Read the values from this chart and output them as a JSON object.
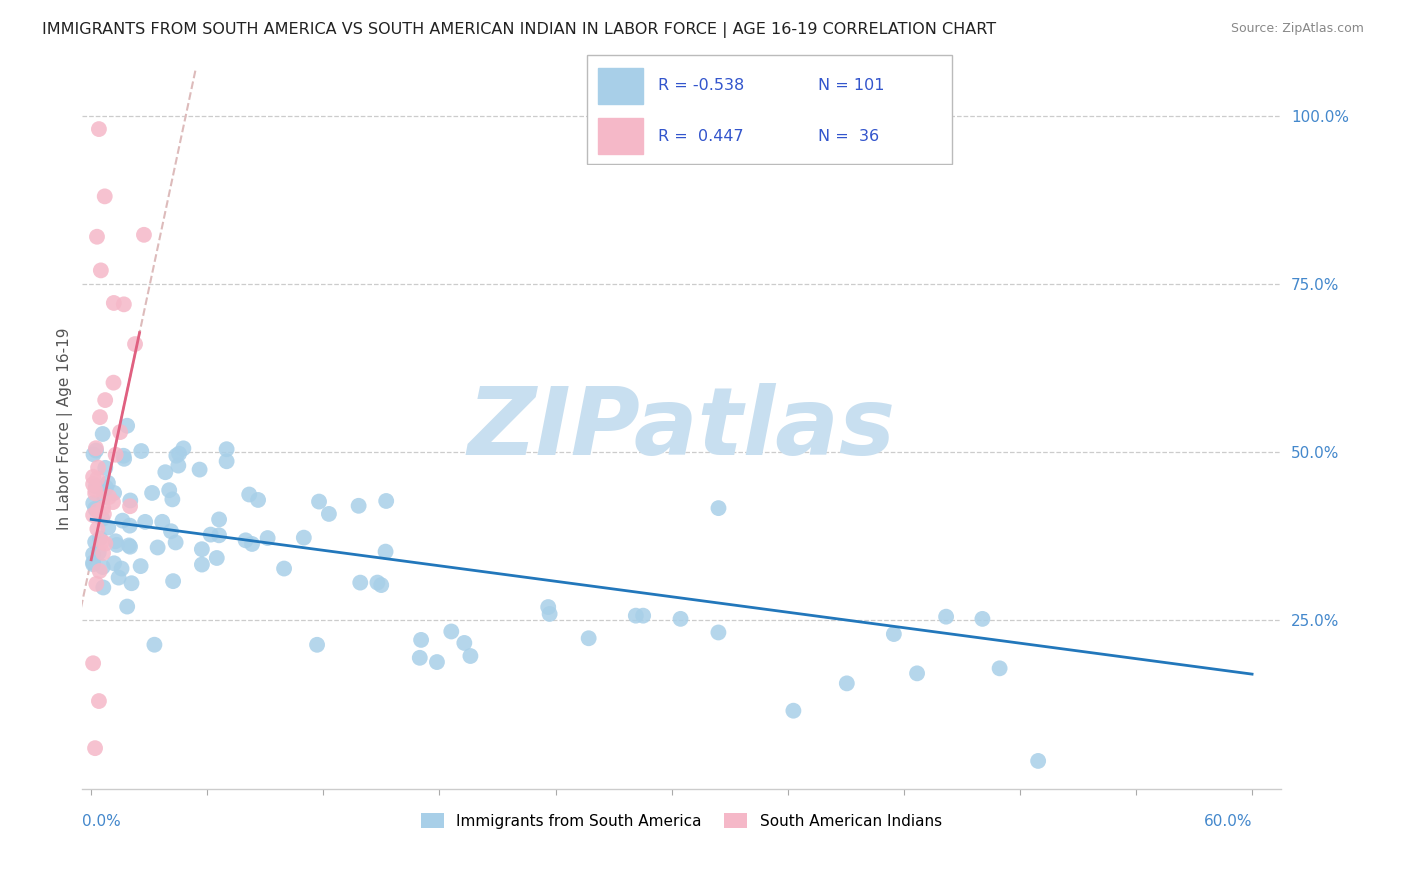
{
  "title": "IMMIGRANTS FROM SOUTH AMERICA VS SOUTH AMERICAN INDIAN IN LABOR FORCE | AGE 16-19 CORRELATION CHART",
  "source": "Source: ZipAtlas.com",
  "ylabel": "In Labor Force | Age 16-19",
  "legend1_label": "Immigrants from South America",
  "legend2_label": "South American Indians",
  "R1": -0.538,
  "N1": 101,
  "R2": 0.447,
  "N2": 36,
  "blue_color": "#a8cfe8",
  "pink_color": "#f5b8c8",
  "blue_line_color": "#2277bb",
  "pink_line_color": "#e06080",
  "gray_dash_color": "#ddbbbb",
  "watermark": "ZIPatlas",
  "watermark_color": "#c8dff0",
  "xlim": [
    0.0,
    0.6
  ],
  "ylim": [
    0.0,
    1.05
  ],
  "right_ytick_vals": [
    1.0,
    0.75,
    0.5,
    0.25
  ],
  "right_ytick_labels": [
    "100.0%",
    "75.0%",
    "50.0%",
    "25.0%"
  ],
  "legend_text_color": "#3355cc",
  "legend_number_color": "#3366ff"
}
